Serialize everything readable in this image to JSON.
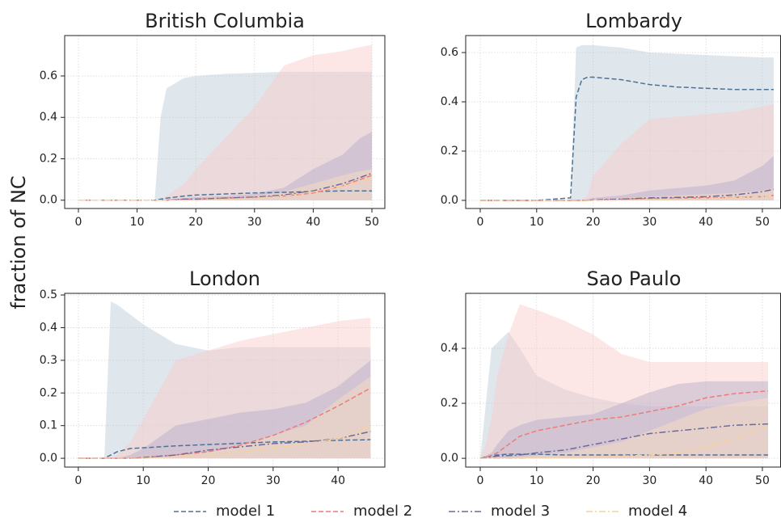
{
  "ylabel": "fraction of NC",
  "legend": [
    {
      "name": "model 1",
      "color": "#4e7196",
      "band": "#b7c7d5",
      "dash": "6,3"
    },
    {
      "name": "model 2",
      "color": "#f07a78",
      "band": "#fbc9c7",
      "dash": "6,3"
    },
    {
      "name": "model 3",
      "color": "#6c6a9c",
      "band": "#b3aac8",
      "dash": "8,3,2,3"
    },
    {
      "name": "model 4",
      "color": "#f9cf9a",
      "band": "#fde2c0",
      "dash": "8,3,2,3"
    }
  ],
  "chart_data": [
    {
      "type": "band-line",
      "title": "British Columbia",
      "grid": true,
      "xlim": [
        -2.34,
        52.2
      ],
      "ylim": [
        -0.04,
        0.795
      ],
      "xticks": [
        0,
        10,
        20,
        30,
        40,
        50
      ],
      "yticks": [
        {
          "value": 0,
          "label": "0.0"
        },
        0.2,
        0.4,
        0.6
      ],
      "x": [
        0,
        10,
        13,
        14,
        15,
        18,
        20,
        25,
        30,
        35,
        40,
        45,
        48,
        50
      ],
      "series": [
        {
          "values": [
            0,
            0,
            0,
            0.005,
            0.01,
            0.02,
            0.025,
            0.03,
            0.035,
            0.038,
            0.042,
            0.045,
            0.045,
            0.045
          ],
          "lower": [
            0,
            0,
            0,
            0,
            0,
            0,
            0,
            0,
            0,
            0,
            0,
            0,
            0,
            0
          ],
          "upper": [
            0,
            0,
            0,
            0.4,
            0.54,
            0.59,
            0.6,
            0.61,
            0.615,
            0.62,
            0.62,
            0.62,
            0.62,
            0.62
          ]
        },
        {
          "values": [
            0,
            0,
            0,
            0,
            0,
            0.005,
            0.005,
            0.01,
            0.015,
            0.02,
            0.035,
            0.07,
            0.1,
            0.12
          ],
          "lower": [
            0,
            0,
            0,
            0,
            0,
            0,
            0,
            0,
            0,
            0,
            0,
            0,
            0,
            0
          ],
          "upper": [
            0,
            0,
            0,
            0,
            0.02,
            0.08,
            0.15,
            0.3,
            0.45,
            0.65,
            0.7,
            0.72,
            0.74,
            0.75
          ]
        },
        {
          "values": [
            0,
            0,
            0,
            0,
            0,
            0.005,
            0.005,
            0.01,
            0.015,
            0.025,
            0.045,
            0.08,
            0.11,
            0.13
          ],
          "lower": [
            0,
            0,
            0,
            0,
            0,
            0,
            0,
            0,
            0,
            0,
            0,
            0,
            0,
            0
          ],
          "upper": [
            0,
            0,
            0,
            0,
            0,
            0.01,
            0.015,
            0.02,
            0.03,
            0.06,
            0.15,
            0.22,
            0.3,
            0.33
          ]
        },
        {
          "values": [
            0,
            0,
            0,
            0,
            0,
            0,
            0,
            0.005,
            0.01,
            0.02,
            0.04,
            0.07,
            0.09,
            0.11
          ],
          "lower": [
            0,
            0,
            0,
            0,
            0,
            0,
            0,
            0,
            0,
            0,
            0,
            0,
            0,
            0
          ],
          "upper": [
            0,
            0,
            0,
            0,
            0,
            0,
            0.005,
            0.01,
            0.02,
            0.04,
            0.08,
            0.12,
            0.14,
            0.15
          ]
        }
      ]
    },
    {
      "type": "band-line",
      "title": "Lombardy",
      "grid": true,
      "xlim": [
        -2.58,
        53.3
      ],
      "ylim": [
        -0.033,
        0.669
      ],
      "xticks": [
        0,
        10,
        20,
        30,
        40,
        50
      ],
      "yticks": [
        {
          "value": 0,
          "label": "0.0"
        },
        0.2,
        0.4,
        0.6
      ],
      "x": [
        0,
        10,
        16,
        17,
        18,
        19,
        20,
        25,
        30,
        35,
        40,
        45,
        50,
        52
      ],
      "series": [
        {
          "values": [
            0,
            0,
            0.01,
            0.42,
            0.49,
            0.5,
            0.5,
            0.49,
            0.47,
            0.46,
            0.455,
            0.45,
            0.45,
            0.45
          ],
          "lower": [
            0,
            0,
            0,
            0,
            0,
            0,
            0,
            0,
            0,
            0,
            0,
            0,
            0,
            0
          ],
          "upper": [
            0,
            0,
            0,
            0.62,
            0.63,
            0.63,
            0.63,
            0.62,
            0.6,
            0.595,
            0.59,
            0.585,
            0.58,
            0.58
          ]
        },
        {
          "values": [
            0,
            0,
            0,
            0,
            0,
            0,
            0.002,
            0.005,
            0.008,
            0.01,
            0.01,
            0.012,
            0.015,
            0.02
          ],
          "lower": [
            0,
            0,
            0,
            0,
            0,
            0,
            0,
            0,
            0,
            0,
            0,
            0,
            0,
            0
          ],
          "upper": [
            0,
            0,
            0,
            0,
            0,
            0.02,
            0.1,
            0.23,
            0.33,
            0.34,
            0.35,
            0.36,
            0.38,
            0.39
          ]
        },
        {
          "values": [
            0,
            0,
            0,
            0,
            0,
            0,
            0.002,
            0.005,
            0.01,
            0.012,
            0.015,
            0.022,
            0.035,
            0.045
          ],
          "lower": [
            0,
            0,
            0,
            0,
            0,
            0,
            0,
            0,
            0,
            0,
            0,
            0,
            0,
            0
          ],
          "upper": [
            0,
            0,
            0,
            0,
            0,
            0.005,
            0.01,
            0.02,
            0.04,
            0.05,
            0.06,
            0.08,
            0.14,
            0.18
          ]
        },
        {
          "values": [
            0,
            0,
            0,
            0,
            0,
            0,
            0,
            0.001,
            0.003,
            0.005,
            0.008,
            0.01,
            0.015,
            0.02
          ],
          "lower": [
            0,
            0,
            0,
            0,
            0,
            0,
            0,
            0,
            0,
            0,
            0,
            0,
            0,
            0
          ],
          "upper": [
            0,
            0,
            0,
            0,
            0,
            0,
            0.005,
            0.01,
            0.015,
            0.02,
            0.025,
            0.03,
            0.04,
            0.05
          ]
        }
      ]
    },
    {
      "type": "band-line",
      "title": "London",
      "grid": true,
      "xlim": [
        -2.1,
        47.2
      ],
      "ylim": [
        -0.027,
        0.505
      ],
      "xticks": [
        0,
        10,
        20,
        30,
        40
      ],
      "yticks": [
        {
          "value": 0,
          "label": "0.0"
        },
        0.1,
        0.2,
        0.3,
        0.4,
        0.5
      ],
      "x": [
        0,
        4,
        5,
        6,
        8,
        10,
        15,
        20,
        25,
        30,
        35,
        40,
        45
      ],
      "series": [
        {
          "values": [
            0,
            0,
            0.01,
            0.02,
            0.03,
            0.032,
            0.038,
            0.042,
            0.046,
            0.05,
            0.052,
            0.055,
            0.057
          ],
          "lower": [
            0,
            0,
            0,
            0,
            0,
            0,
            0,
            0,
            0,
            0,
            0,
            0,
            0
          ],
          "upper": [
            0,
            0,
            0.48,
            0.47,
            0.44,
            0.41,
            0.35,
            0.33,
            0.34,
            0.34,
            0.34,
            0.34,
            0.34
          ]
        },
        {
          "values": [
            0,
            0,
            0,
            0,
            0,
            0.002,
            0.01,
            0.02,
            0.04,
            0.07,
            0.11,
            0.16,
            0.215
          ],
          "lower": [
            0,
            0,
            0,
            0,
            0,
            0,
            0,
            0,
            0,
            0,
            0,
            0,
            0
          ],
          "upper": [
            0,
            0,
            0,
            0.01,
            0.05,
            0.12,
            0.3,
            0.33,
            0.36,
            0.38,
            0.4,
            0.42,
            0.43
          ]
        },
        {
          "values": [
            0,
            0,
            0,
            0,
            0,
            0.002,
            0.01,
            0.025,
            0.035,
            0.045,
            0.05,
            0.06,
            0.082
          ],
          "lower": [
            0,
            0,
            0,
            0,
            0,
            0,
            0,
            0,
            0,
            0,
            0,
            0,
            0
          ],
          "upper": [
            0,
            0,
            0,
            0,
            0.01,
            0.03,
            0.1,
            0.12,
            0.14,
            0.15,
            0.17,
            0.22,
            0.3
          ]
        },
        {
          "values": [
            0,
            0,
            0,
            0,
            0,
            0,
            0.005,
            0.01,
            0.02,
            0.03,
            0.045,
            0.06,
            0.097
          ],
          "lower": [
            0,
            0,
            0,
            0,
            0,
            0,
            0,
            0,
            0,
            0,
            0,
            0,
            0
          ],
          "upper": [
            0,
            0,
            0,
            0,
            0,
            0.005,
            0.01,
            0.02,
            0.04,
            0.07,
            0.1,
            0.18,
            0.25
          ]
        }
      ]
    },
    {
      "type": "band-line",
      "title": "Sao Paulo",
      "grid": true,
      "xlim": [
        -2.58,
        53.3
      ],
      "ylim": [
        -0.032,
        0.6
      ],
      "xticks": [
        0,
        10,
        20,
        30,
        40,
        50
      ],
      "yticks": [
        {
          "value": 0,
          "label": "0.0"
        },
        0.2,
        0.4
      ],
      "x": [
        0,
        1,
        2,
        3,
        5,
        7,
        10,
        15,
        20,
        25,
        30,
        35,
        40,
        45,
        51
      ],
      "series": [
        {
          "values": [
            0,
            0.005,
            0.01,
            0.012,
            0.015,
            0.015,
            0.015,
            0.012,
            0.012,
            0.012,
            0.012,
            0.012,
            0.012,
            0.012,
            0.012
          ],
          "lower": [
            0,
            0,
            0,
            0,
            0,
            0,
            0,
            0,
            0,
            0,
            0,
            0,
            0,
            0,
            0
          ],
          "upper": [
            0,
            0.2,
            0.4,
            0.42,
            0.46,
            0.4,
            0.3,
            0.25,
            0.22,
            0.2,
            0.19,
            0.19,
            0.19,
            0.19,
            0.19
          ]
        },
        {
          "values": [
            0,
            0.005,
            0.01,
            0.02,
            0.05,
            0.08,
            0.1,
            0.12,
            0.14,
            0.15,
            0.17,
            0.19,
            0.22,
            0.235,
            0.245
          ],
          "lower": [
            0,
            0,
            0,
            0,
            0,
            0,
            0,
            0,
            0,
            0,
            0,
            0,
            0,
            0,
            0
          ],
          "upper": [
            0,
            0.05,
            0.15,
            0.3,
            0.45,
            0.56,
            0.54,
            0.5,
            0.45,
            0.38,
            0.35,
            0.35,
            0.35,
            0.35,
            0.35
          ]
        },
        {
          "values": [
            0,
            0.003,
            0.005,
            0.008,
            0.01,
            0.012,
            0.02,
            0.03,
            0.05,
            0.07,
            0.09,
            0.1,
            0.11,
            0.12,
            0.125
          ],
          "lower": [
            0,
            0,
            0,
            0,
            0,
            0,
            0,
            0,
            0,
            0,
            0,
            0,
            0,
            0,
            0
          ],
          "upper": [
            0,
            0.01,
            0.02,
            0.05,
            0.1,
            0.12,
            0.14,
            0.15,
            0.16,
            0.2,
            0.24,
            0.27,
            0.28,
            0.28,
            0.28
          ]
        },
        {
          "values": [
            0,
            0,
            0,
            0,
            0,
            0,
            0.002,
            0.003,
            0.005,
            0.008,
            0.012,
            0.02,
            0.04,
            0.07,
            0.12
          ],
          "lower": [
            0,
            0,
            0,
            0,
            0,
            0,
            0,
            0,
            0,
            0,
            0,
            0,
            0,
            0,
            0
          ],
          "upper": [
            0,
            0,
            0,
            0,
            0,
            0.005,
            0.01,
            0.02,
            0.04,
            0.06,
            0.1,
            0.14,
            0.18,
            0.2,
            0.22
          ]
        }
      ]
    }
  ]
}
